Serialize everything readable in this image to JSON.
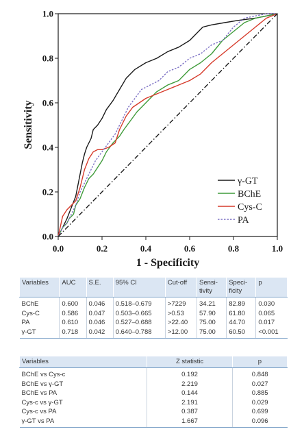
{
  "chart_data": {
    "type": "line",
    "xlabel": "1 - Specificity",
    "ylabel": "Sensitivity",
    "xlim": [
      0,
      1
    ],
    "ylim": [
      0,
      1
    ],
    "x_ticks": [
      "0.0",
      "0.2",
      "0.4",
      "0.6",
      "0.8",
      "1.0"
    ],
    "y_ticks": [
      "0.0",
      "0.2",
      "0.4",
      "0.6",
      "0.8",
      "1.0"
    ],
    "legend_position": "bottom-right",
    "series": [
      {
        "name": "γ-GT",
        "color": "#1a1a1a",
        "dash": "solid",
        "x": [
          0,
          0.02,
          0.04,
          0.06,
          0.08,
          0.1,
          0.11,
          0.12,
          0.13,
          0.15,
          0.16,
          0.18,
          0.2,
          0.22,
          0.25,
          0.28,
          0.31,
          0.35,
          0.4,
          0.45,
          0.5,
          0.55,
          0.6,
          0.63,
          0.66,
          0.7,
          0.76,
          0.82,
          0.9,
          0.95,
          1.0
        ],
        "y": [
          0,
          0.04,
          0.08,
          0.13,
          0.18,
          0.28,
          0.33,
          0.37,
          0.4,
          0.44,
          0.48,
          0.5,
          0.53,
          0.57,
          0.61,
          0.66,
          0.71,
          0.75,
          0.78,
          0.8,
          0.83,
          0.85,
          0.88,
          0.91,
          0.94,
          0.95,
          0.96,
          0.97,
          0.98,
          0.99,
          1.0
        ]
      },
      {
        "name": "BChE",
        "color": "#3f9b3a",
        "dash": "solid",
        "x": [
          0,
          0.02,
          0.03,
          0.04,
          0.05,
          0.07,
          0.08,
          0.1,
          0.12,
          0.14,
          0.16,
          0.18,
          0.2,
          0.22,
          0.25,
          0.28,
          0.3,
          0.33,
          0.36,
          0.4,
          0.45,
          0.5,
          0.55,
          0.6,
          0.65,
          0.7,
          0.75,
          0.8,
          0.85,
          0.9,
          0.95,
          1.0
        ],
        "y": [
          0,
          0.04,
          0.05,
          0.06,
          0.08,
          0.1,
          0.14,
          0.17,
          0.22,
          0.26,
          0.28,
          0.31,
          0.34,
          0.38,
          0.42,
          0.45,
          0.48,
          0.52,
          0.56,
          0.6,
          0.65,
          0.68,
          0.7,
          0.75,
          0.78,
          0.82,
          0.88,
          0.92,
          0.96,
          0.98,
          0.99,
          1.0
        ]
      },
      {
        "name": "Cys-C",
        "color": "#d63a2a",
        "dash": "solid",
        "x": [
          0,
          0.02,
          0.04,
          0.06,
          0.08,
          0.1,
          0.12,
          0.14,
          0.16,
          0.18,
          0.2,
          0.23,
          0.26,
          0.28,
          0.31,
          0.34,
          0.37,
          0.4,
          0.45,
          0.5,
          0.55,
          0.6,
          0.65,
          0.7,
          0.75,
          0.8,
          0.85,
          0.9,
          0.95,
          1.0
        ],
        "y": [
          0,
          0.09,
          0.12,
          0.14,
          0.16,
          0.22,
          0.3,
          0.35,
          0.38,
          0.39,
          0.39,
          0.4,
          0.42,
          0.48,
          0.54,
          0.58,
          0.6,
          0.62,
          0.64,
          0.66,
          0.68,
          0.7,
          0.73,
          0.78,
          0.82,
          0.86,
          0.9,
          0.94,
          0.98,
          1.0
        ]
      },
      {
        "name": "PA",
        "color": "#7c70c4",
        "dash": "dotted",
        "x": [
          0,
          0.02,
          0.04,
          0.06,
          0.08,
          0.1,
          0.12,
          0.14,
          0.17,
          0.2,
          0.23,
          0.26,
          0.29,
          0.32,
          0.35,
          0.38,
          0.42,
          0.46,
          0.5,
          0.55,
          0.6,
          0.65,
          0.7,
          0.75,
          0.8,
          0.85,
          0.9,
          0.95,
          1.0
        ],
        "y": [
          0,
          0.04,
          0.06,
          0.1,
          0.14,
          0.2,
          0.24,
          0.28,
          0.34,
          0.38,
          0.42,
          0.46,
          0.52,
          0.58,
          0.62,
          0.66,
          0.68,
          0.7,
          0.74,
          0.76,
          0.8,
          0.82,
          0.86,
          0.88,
          0.94,
          0.98,
          0.99,
          1.0,
          1.0
        ]
      },
      {
        "name": "",
        "color": "#1a1a1a",
        "dash": "dashdot",
        "reference": true,
        "x": [
          0,
          1
        ],
        "y": [
          0,
          1
        ]
      }
    ]
  },
  "table1": {
    "headers": [
      "Variables",
      "AUC",
      "S.E.",
      "95% CI",
      "Cut-off",
      "Sensi-\ntivity",
      "Speci-\nficity",
      "p"
    ],
    "rows": [
      [
        "BChE",
        "0.600",
        "0.046",
        "0.518–0.679",
        ">7229",
        "34.21",
        "82.89",
        "0.030"
      ],
      [
        "Cys-C",
        "0.586",
        "0.047",
        "0.503–0.665",
        ">0.53",
        "57.90",
        "61.80",
        "0.065"
      ],
      [
        "PA",
        "0.610",
        "0.046",
        "0.527–0.688",
        ">22.40",
        "75.00",
        "44.70",
        "0.017"
      ],
      [
        "γ-GT",
        "0.718",
        "0.042",
        "0.640–0.788",
        ">12.00",
        "75.00",
        "60.50",
        "<0.001"
      ]
    ]
  },
  "table2": {
    "headers": [
      "Variables",
      "Z statistic",
      "p"
    ],
    "rows": [
      [
        "BChE vs Cys-c",
        "0.192",
        "0.848"
      ],
      [
        "BChE vs γ-GT",
        "2.219",
        "0.027"
      ],
      [
        "BChE vs PA",
        "0.144",
        "0.885"
      ],
      [
        "Cys-c vs γ-GT",
        "2.191",
        "0.029"
      ],
      [
        "Cys-c vs PA",
        "0.387",
        "0.699"
      ],
      [
        "γ-GT vs PA",
        "1.667",
        "0.096"
      ]
    ]
  }
}
